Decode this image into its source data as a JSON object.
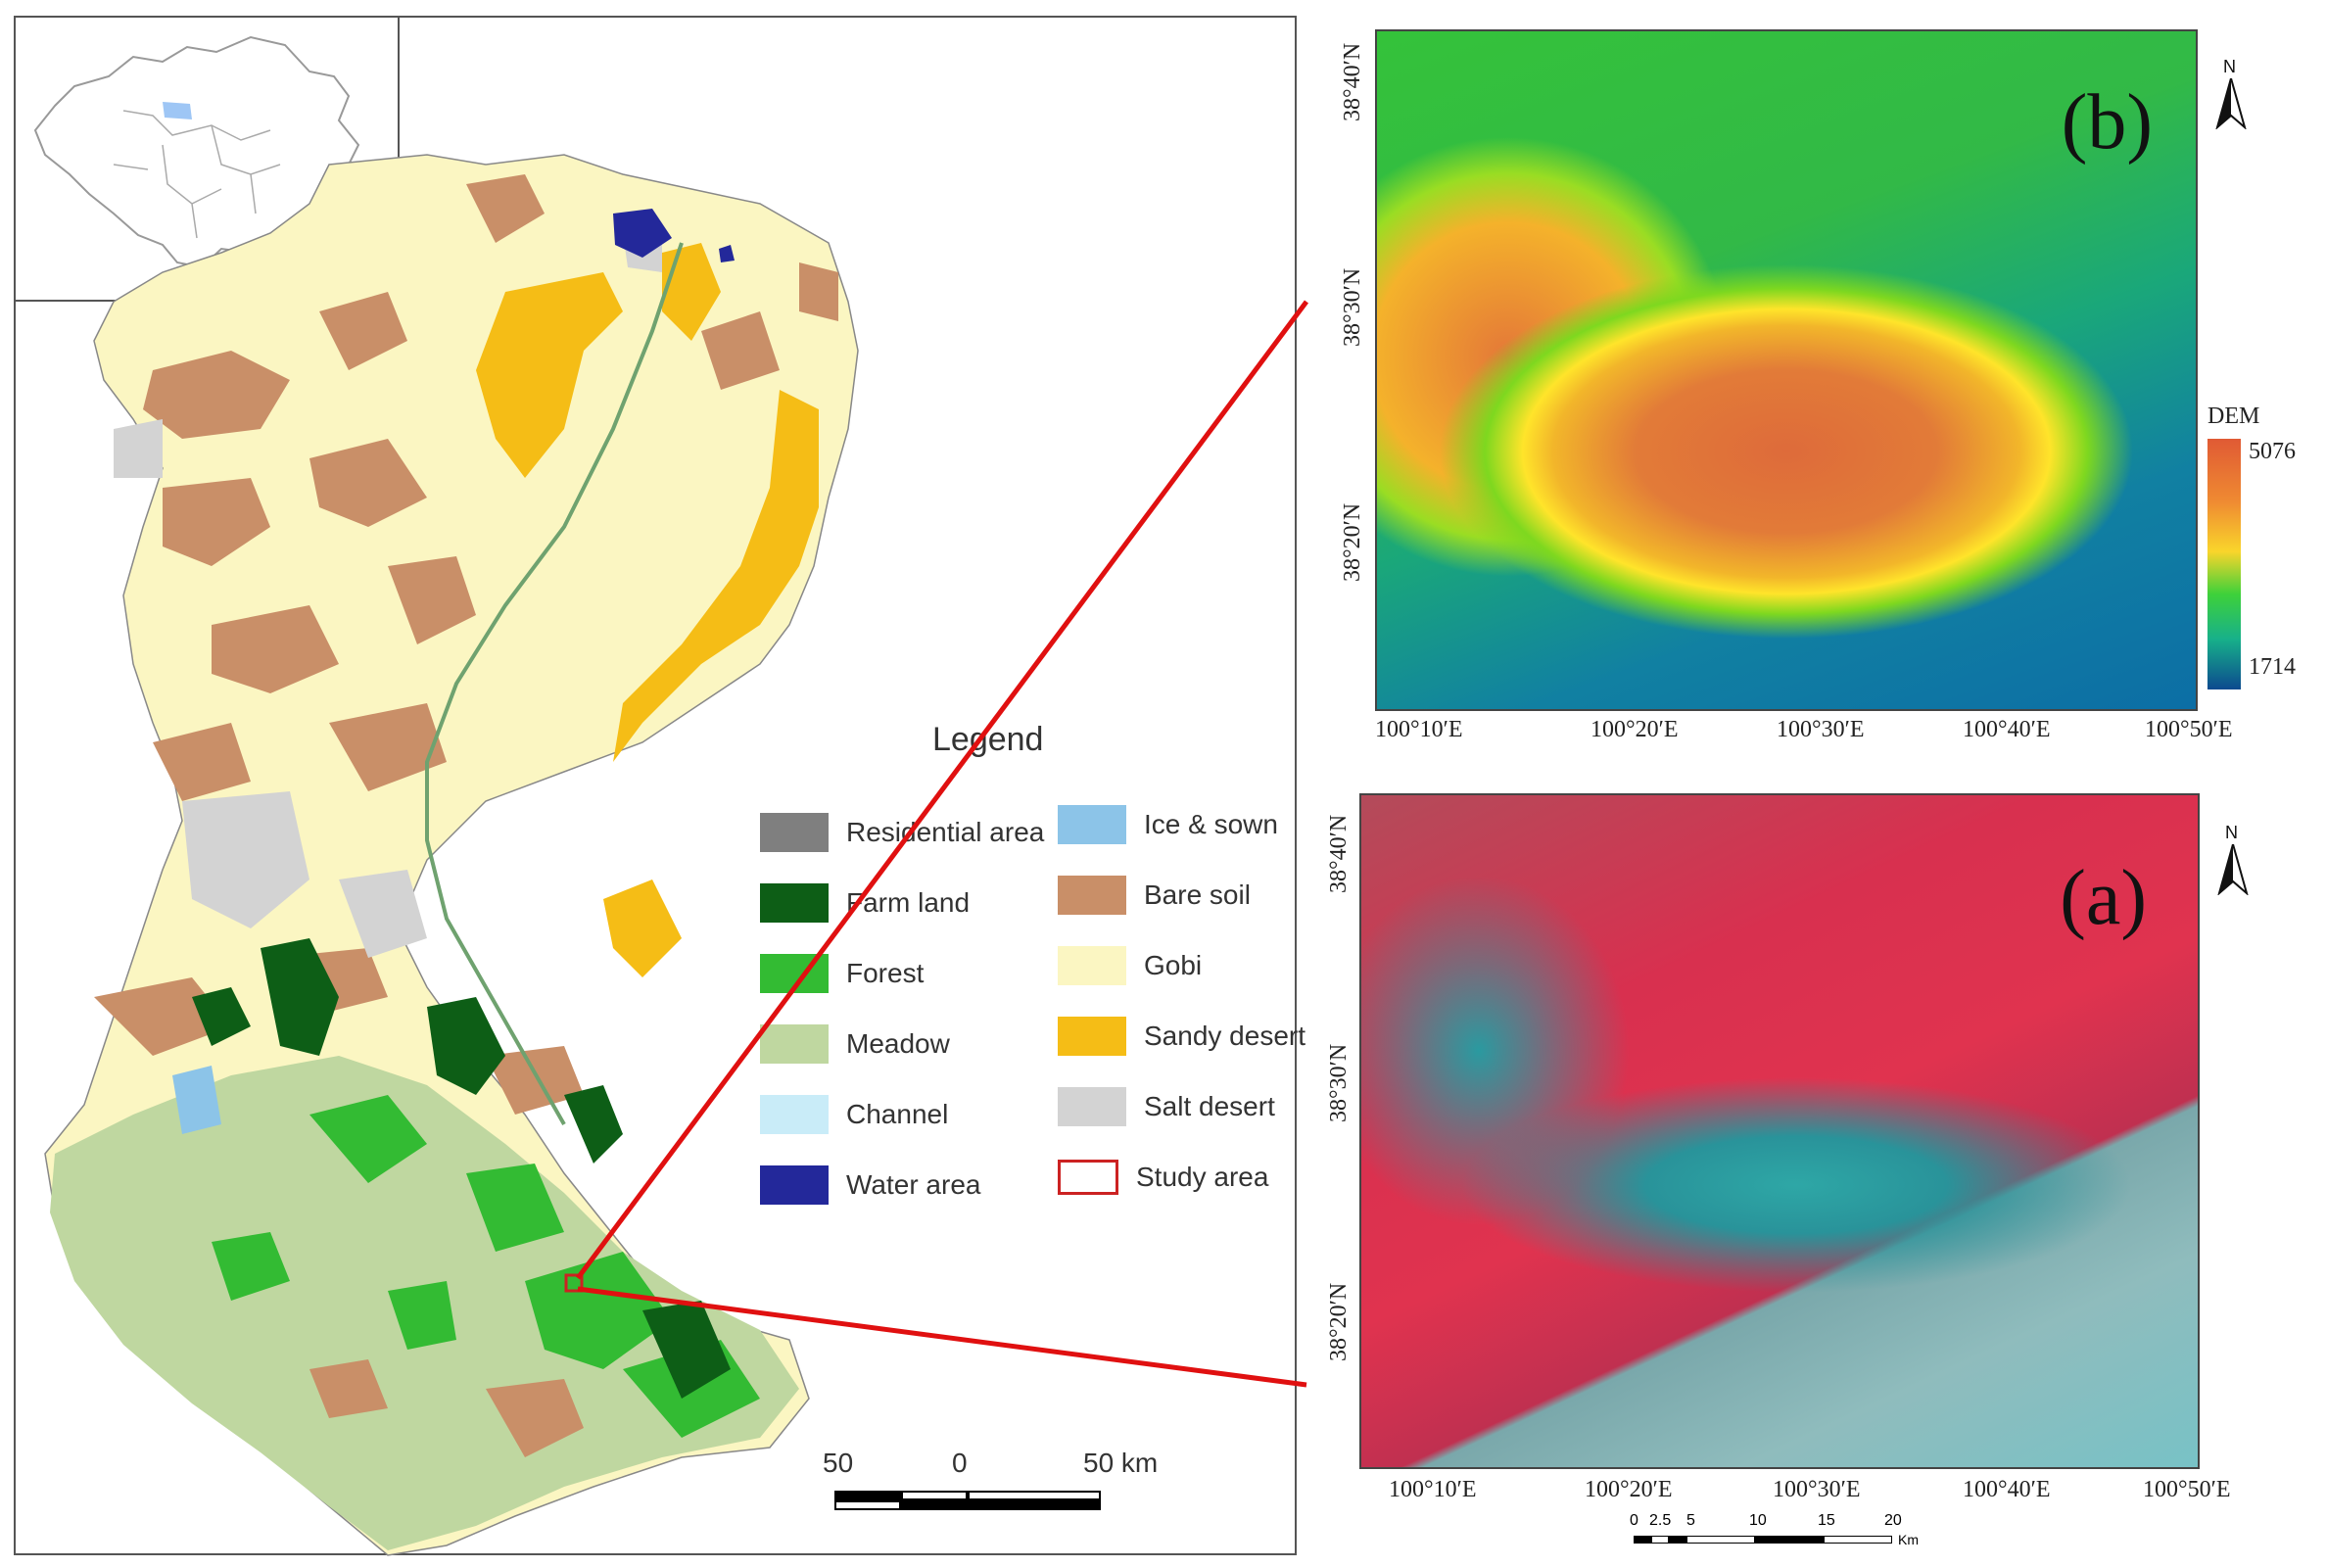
{
  "legend": {
    "title": "Legend",
    "items": [
      {
        "label": "Residential area",
        "color": "#7f7f7f"
      },
      {
        "label": "Farm land",
        "color": "#0d5e16"
      },
      {
        "label": "Forest",
        "color": "#33bb33"
      },
      {
        "label": "Meadow",
        "color": "#bfd7a0"
      },
      {
        "label": "Channel",
        "color": "#c9ecf8"
      },
      {
        "label": "Water area",
        "color": "#23289a"
      },
      {
        "label": "Ice & sown",
        "color": "#8cc4e8"
      },
      {
        "label": "Bare soil",
        "color": "#c98f68"
      },
      {
        "label": "Gobi",
        "color": "#fbf6c2"
      },
      {
        "label": "Sandy desert",
        "color": "#f5bd16"
      },
      {
        "label": "Salt desert",
        "color": "#d3d3d3"
      },
      {
        "label": "Study area",
        "color": "#ffffff"
      }
    ]
  },
  "scalebar_main": {
    "labels": [
      "50",
      "0",
      "50 km"
    ]
  },
  "dem_panel": {
    "label": "(b)",
    "north": "N",
    "colorbar_title": "DEM",
    "colorbar_max": "5076",
    "colorbar_min": "1714",
    "lon_ticks": [
      "100°10′E",
      "100°20′E",
      "100°30′E",
      "100°40′E",
      "100°50′E"
    ],
    "lat_ticks": [
      "38°40′N",
      "38°30′N",
      "38°20′N"
    ]
  },
  "image_panel": {
    "label": "(a)",
    "north": "N",
    "lon_ticks": [
      "100°10′E",
      "100°20′E",
      "100°30′E",
      "100°40′E",
      "100°50′E"
    ],
    "lat_ticks": [
      "38°40′N",
      "38°30′N",
      "38°20′N"
    ],
    "scale_labels": [
      "0",
      "2.5",
      "5",
      "10",
      "15",
      "20"
    ],
    "scale_unit": "Km"
  },
  "colors": {
    "leader": "#e01010",
    "study_area": "#cc2222"
  }
}
